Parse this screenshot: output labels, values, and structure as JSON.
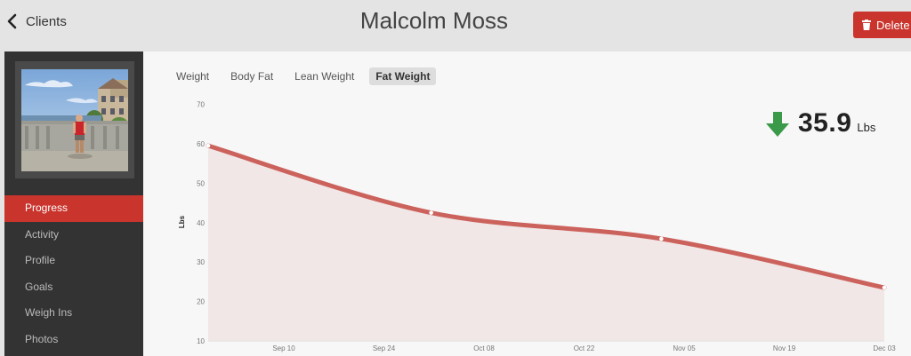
{
  "header": {
    "back_label": "Clients",
    "client_name": "Malcolm Moss",
    "delete_label": "Delete"
  },
  "sidebar": {
    "items": [
      {
        "label": "Progress",
        "active": true
      },
      {
        "label": "Activity",
        "active": false
      },
      {
        "label": "Profile",
        "active": false
      },
      {
        "label": "Goals",
        "active": false
      },
      {
        "label": "Weigh Ins",
        "active": false
      },
      {
        "label": "Photos",
        "active": false
      }
    ]
  },
  "tabs": [
    {
      "label": "Weight",
      "active": false
    },
    {
      "label": "Body Fat",
      "active": false
    },
    {
      "label": "Lean Weight",
      "active": false
    },
    {
      "label": "Fat Weight",
      "active": true
    }
  ],
  "stat": {
    "value": "35.9",
    "unit": "Lbs",
    "trend": "down",
    "trend_color": "#3a9a4a"
  },
  "colors": {
    "accent": "#c9342d",
    "line": "#cc625c",
    "fill": "#efe1e1"
  },
  "chart_data": {
    "type": "area",
    "ylabel": "Lbs",
    "ylim": [
      10,
      70
    ],
    "yticks": [
      10,
      20,
      30,
      40,
      50,
      60,
      70
    ],
    "xlim": [
      "2013-08-31",
      "2013-12-03"
    ],
    "xticks": [
      "Sep 10",
      "Sep 24",
      "Oct 08",
      "Oct 22",
      "Nov 05",
      "Nov 19",
      "Dec 03"
    ],
    "series": [
      {
        "points": [
          {
            "x": "2013-08-31",
            "y": 59.5
          },
          {
            "x": "2013-10-01",
            "y": 42.5
          },
          {
            "x": "2013-11-02",
            "y": 35.9
          },
          {
            "x": "2013-12-03",
            "y": 23.5
          }
        ]
      }
    ]
  }
}
